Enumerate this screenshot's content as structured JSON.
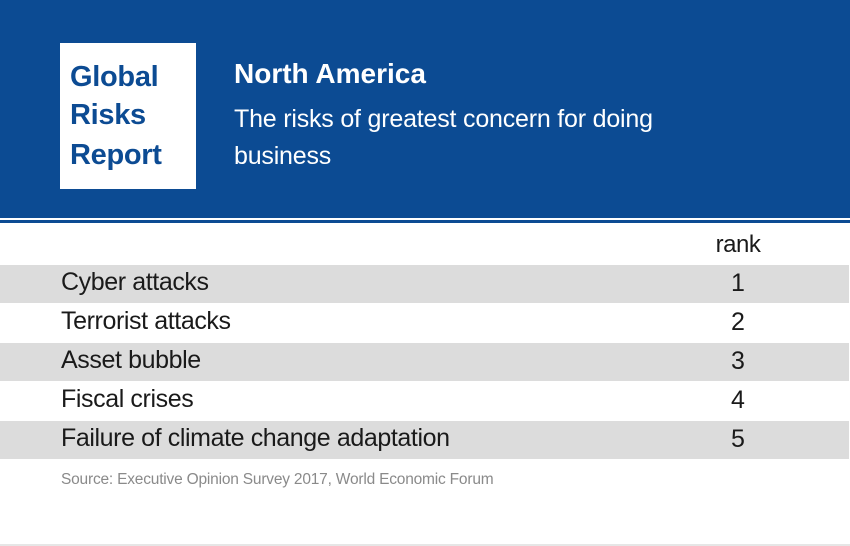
{
  "logo": {
    "lines": [
      "Global",
      "Risks",
      "Report"
    ]
  },
  "header": {
    "title": "North America",
    "subtitle": "The risks of greatest concern for doing business"
  },
  "colors": {
    "brand_blue": "#0c4b93",
    "row_shade": "#dcdcdc",
    "source_text": "#8a8a8a"
  },
  "chart_data": {
    "type": "table",
    "title": "North America",
    "subtitle": "The risks of greatest concern for doing business",
    "columns": [
      "",
      "rank"
    ],
    "rows": [
      {
        "risk": "Cyber attacks",
        "rank": "1"
      },
      {
        "risk": "Terrorist attacks",
        "rank": "2"
      },
      {
        "risk": "Asset bubble",
        "rank": "3"
      },
      {
        "risk": "Fiscal crises",
        "rank": "4"
      },
      {
        "risk": "Failure of climate change adaptation",
        "rank": "5"
      }
    ],
    "source": "Source: Executive Opinion Survey 2017, World Economic Forum"
  }
}
